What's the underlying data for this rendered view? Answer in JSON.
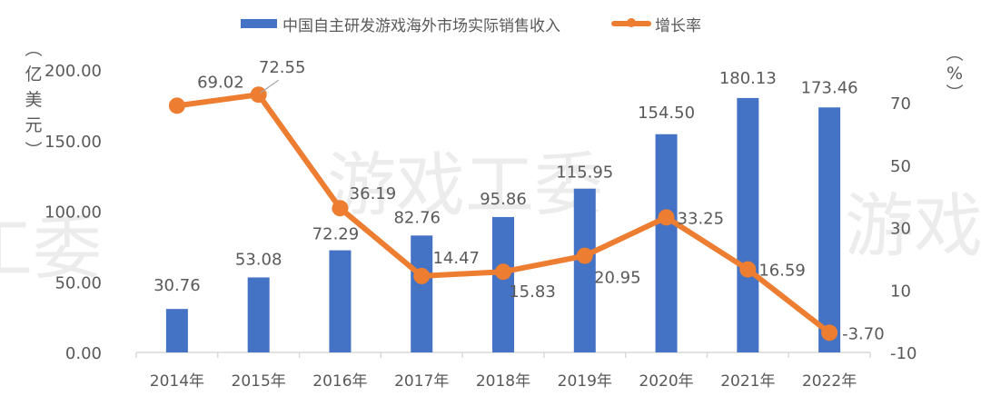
{
  "chart_data": {
    "type": "bar+line",
    "title": "",
    "categories": [
      "2014年",
      "2015年",
      "2016年",
      "2017年",
      "2018年",
      "2019年",
      "2020年",
      "2021年",
      "2022年"
    ],
    "series": [
      {
        "name": "中国自主研发游戏海外市场实际销售收入",
        "type": "bar",
        "axis": "left",
        "color": "#4472c4",
        "values": [
          30.76,
          53.08,
          72.29,
          82.76,
          95.86,
          115.95,
          154.5,
          180.13,
          173.46
        ],
        "labels": [
          "30.76",
          "53.08",
          "72.29",
          "82.76",
          "95.86",
          "115.95",
          "154.50",
          "180.13",
          "173.46"
        ]
      },
      {
        "name": "增长率",
        "type": "line",
        "axis": "right",
        "color": "#ed7d31",
        "values": [
          69.02,
          72.55,
          36.19,
          14.47,
          15.83,
          20.95,
          33.25,
          16.59,
          -3.7
        ],
        "labels": [
          "69.02",
          "72.55",
          "36.19",
          "14.47",
          "15.83",
          "20.95",
          "33.25",
          "16.59",
          "-3.70"
        ]
      }
    ],
    "left_axis": {
      "label": "（亿美元）",
      "label_chars": [
        "︵",
        "亿",
        "美",
        "元",
        "︶"
      ],
      "ylim": [
        0,
        200
      ],
      "ticks": [
        "0.00",
        "50.00",
        "100.00",
        "150.00",
        "200.00"
      ],
      "tick_values": [
        0,
        50,
        100,
        150,
        200
      ]
    },
    "right_axis": {
      "label": "（%）",
      "label_chars": [
        "︵",
        "%",
        "︶"
      ],
      "ylim": [
        -10,
        70
      ],
      "ticks": [
        "-10",
        "10",
        "30",
        "50",
        "70"
      ],
      "tick_values": [
        -10,
        10,
        30,
        50,
        70
      ]
    },
    "xlabel": "",
    "legend_position": "top",
    "grid": false,
    "watermark": "游戏工委"
  },
  "legend": {
    "bar_label": "中国自主研发游戏海外市场实际销售收入",
    "line_label": "增长率"
  },
  "colors": {
    "bar": "#4472c4",
    "line": "#ed7d31",
    "text": "#595959",
    "axis": "#d9d9d9",
    "watermark": "#ececec"
  }
}
